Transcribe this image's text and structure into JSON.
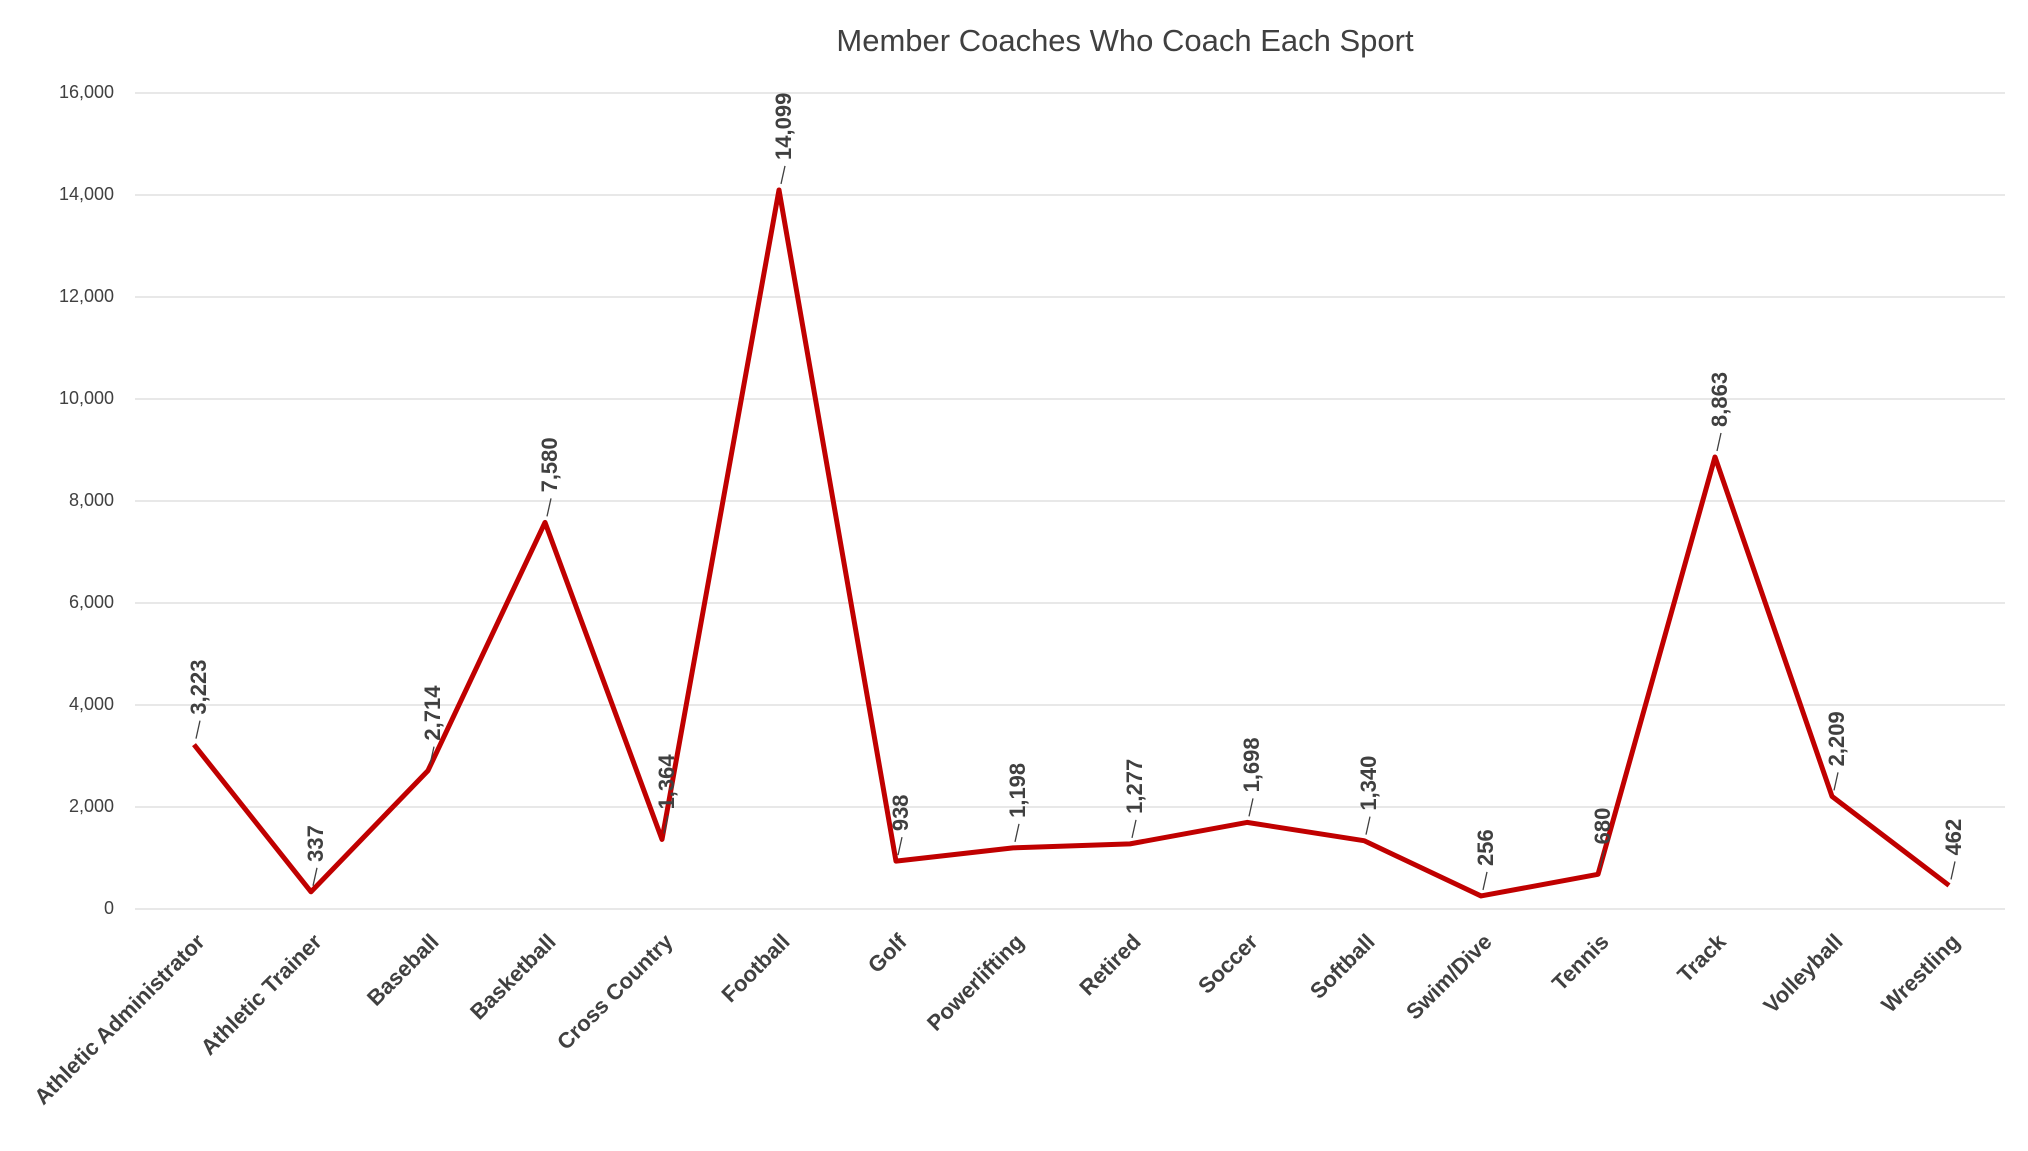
{
  "chart_data": {
    "type": "line",
    "title": "Member Coaches Who Coach Each Sport",
    "categories": [
      "Athletic Administrator",
      "Athletic Trainer",
      "Baseball",
      "Basketball",
      "Cross Country",
      "Football",
      "Golf",
      "Powerlifting",
      "Retired",
      "Soccer",
      "Softball",
      "Swim/Dive",
      "Tennis",
      "Track",
      "Volleyball",
      "Wrestling"
    ],
    "values": [
      3223,
      337,
      2714,
      7580,
      1364,
      14099,
      938,
      1198,
      1277,
      1698,
      1340,
      256,
      680,
      8863,
      2209,
      462
    ],
    "value_labels": [
      "3,223",
      "337",
      "2,714",
      "7,580",
      "1,364",
      "14,099",
      "938",
      "1,198",
      "1,277",
      "1,698",
      "1,340",
      "256",
      "680",
      "8,863",
      "2,209",
      "462"
    ],
    "color": "#c00000",
    "ylim": [
      0,
      16000
    ],
    "yticks": [
      0,
      {
        "value": 2000,
        "label": "2,000"
      },
      {
        "value": 4000,
        "label": "4,000"
      },
      {
        "value": 6000,
        "label": "6,000"
      },
      {
        "value": 8000,
        "label": "8,000"
      },
      {
        "value": 10000,
        "label": "10,000"
      },
      {
        "value": 12000,
        "label": "12,000"
      },
      {
        "value": 14000,
        "label": "14,000"
      },
      {
        "value": 16000,
        "label": "16,000"
      }
    ],
    "grid": true
  }
}
